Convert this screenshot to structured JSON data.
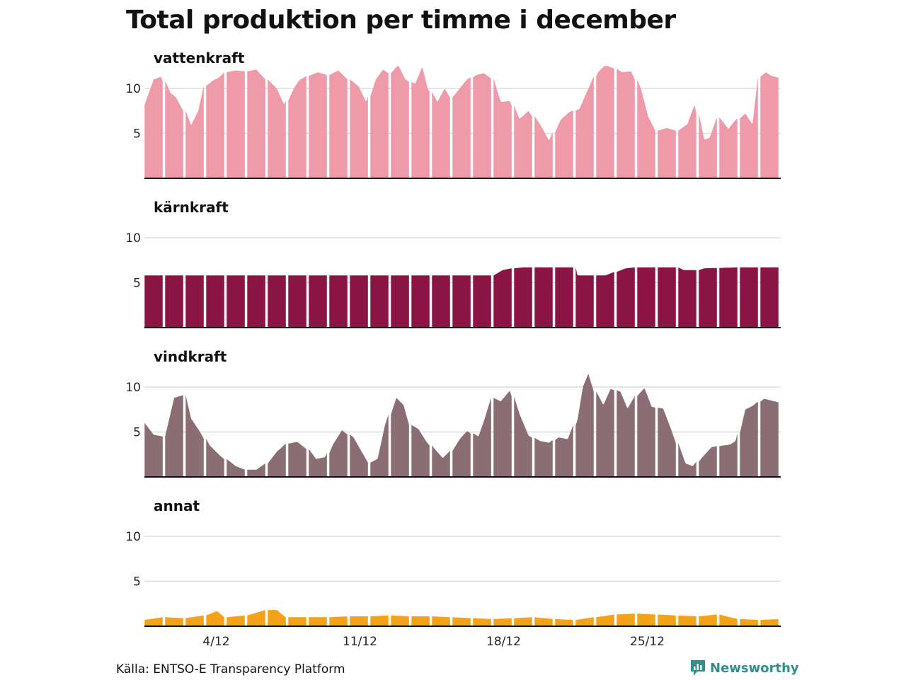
{
  "title": "Total produktion per timme i december",
  "source": "Källa: ENTSO-E Transparency Platform",
  "brand": "Newsworthy",
  "chart_data": {
    "type": "area",
    "title": "Total produktion per timme i december",
    "xlabel": "",
    "ylabel": "",
    "x": "dag i december (1–31), timvärden",
    "ylim": [
      0,
      12.5
    ],
    "yticks": [
      5,
      10
    ],
    "xticks": [
      {
        "day": 4,
        "label": "4/12"
      },
      {
        "day": 11,
        "label": "11/12"
      },
      {
        "day": 18,
        "label": "18/12"
      },
      {
        "day": 25,
        "label": "25/12"
      }
    ],
    "grid": true,
    "series": [
      {
        "name": "vattenkraft",
        "color": "#ef9aa9",
        "day_points": [
          [
            1,
            8.2
          ],
          [
            1.5,
            11
          ],
          [
            1.9,
            11.3
          ],
          [
            2.3,
            9.5
          ],
          [
            2.6,
            9
          ],
          [
            3,
            7.5
          ],
          [
            3.3,
            5.9
          ],
          [
            3.7,
            7.5
          ],
          [
            4,
            10.3
          ],
          [
            4.4,
            10.9
          ],
          [
            4.7,
            11.2
          ],
          [
            5,
            11.8
          ],
          [
            5.5,
            12
          ],
          [
            6,
            11.9
          ],
          [
            6.5,
            12.1
          ],
          [
            7,
            11
          ],
          [
            7.5,
            10
          ],
          [
            7.9,
            8.2
          ],
          [
            8.3,
            10
          ],
          [
            8.6,
            10.9
          ],
          [
            9,
            11.4
          ],
          [
            9.5,
            11.8
          ],
          [
            10,
            11.5
          ],
          [
            10.5,
            12
          ],
          [
            10.9,
            11.2
          ],
          [
            11.5,
            10.2
          ],
          [
            11.9,
            8.5
          ],
          [
            12.3,
            11
          ],
          [
            12.7,
            12.1
          ],
          [
            13,
            11.7
          ],
          [
            13.4,
            12.6
          ],
          [
            13.8,
            11
          ],
          [
            14.2,
            10.5
          ],
          [
            14.6,
            12.4
          ],
          [
            14.9,
            10
          ],
          [
            15.3,
            8.5
          ],
          [
            15.7,
            10
          ],
          [
            16,
            9
          ],
          [
            16.4,
            10
          ],
          [
            16.8,
            11
          ],
          [
            17.2,
            11.5
          ],
          [
            17.6,
            11.7
          ],
          [
            18,
            11.1
          ],
          [
            18.4,
            8.5
          ],
          [
            18.9,
            8.6
          ],
          [
            19.3,
            6.6
          ],
          [
            19.8,
            7.5
          ],
          [
            20.3,
            6
          ],
          [
            20.8,
            4.2
          ],
          [
            21.3,
            6.5
          ],
          [
            21.8,
            7.4
          ],
          [
            22.2,
            7.7
          ],
          [
            22.6,
            9.5
          ],
          [
            23.1,
            11.8
          ],
          [
            23.5,
            12.6
          ],
          [
            23.9,
            12.3
          ],
          [
            24.3,
            11.8
          ],
          [
            24.8,
            11.9
          ],
          [
            25.2,
            10
          ],
          [
            25.6,
            6.9
          ],
          [
            26,
            5.3
          ],
          [
            26.5,
            5.6
          ],
          [
            27,
            5.3
          ],
          [
            27.5,
            6
          ],
          [
            27.9,
            8.2
          ],
          [
            28.3,
            4.3
          ],
          [
            28.6,
            4.5
          ],
          [
            29,
            6.8
          ],
          [
            29.5,
            5.5
          ],
          [
            29.9,
            6.5
          ],
          [
            30.3,
            7.2
          ],
          [
            30.7,
            6
          ],
          [
            31,
            11.3
          ],
          [
            31.3,
            11.8
          ],
          [
            31.6,
            11.4
          ],
          [
            32,
            11.2
          ]
        ]
      },
      {
        "name": "kärnkraft",
        "color": "#8a1545",
        "day_points": [
          [
            1,
            5.8
          ],
          [
            18,
            5.8
          ],
          [
            18.5,
            6.4
          ],
          [
            19,
            6.6
          ],
          [
            19.5,
            6.7
          ],
          [
            20,
            6.7
          ],
          [
            22,
            6.7
          ],
          [
            22.1,
            5.8
          ],
          [
            23.5,
            5.8
          ],
          [
            24,
            6.2
          ],
          [
            24.5,
            6.6
          ],
          [
            25,
            6.7
          ],
          [
            26,
            6.7
          ],
          [
            27,
            6.7
          ],
          [
            27.3,
            6.4
          ],
          [
            28,
            6.4
          ],
          [
            28.3,
            6.6
          ],
          [
            30,
            6.7
          ],
          [
            32,
            6.7
          ]
        ]
      },
      {
        "name": "vindkraft",
        "color": "#8b6d74",
        "day_points": [
          [
            1,
            6
          ],
          [
            1.5,
            4.7
          ],
          [
            2,
            4.5
          ],
          [
            2.5,
            8.8
          ],
          [
            3,
            9.1
          ],
          [
            3.3,
            6.5
          ],
          [
            3.8,
            5
          ],
          [
            4.2,
            3.5
          ],
          [
            4.8,
            2.3
          ],
          [
            5.5,
            1.2
          ],
          [
            6,
            0.8
          ],
          [
            6.5,
            0.8
          ],
          [
            7,
            1.5
          ],
          [
            7.5,
            2.8
          ],
          [
            8,
            3.7
          ],
          [
            8.5,
            3.9
          ],
          [
            9,
            3.1
          ],
          [
            9.4,
            2
          ],
          [
            9.9,
            2.2
          ],
          [
            10.2,
            3.6
          ],
          [
            10.7,
            5.2
          ],
          [
            11.2,
            4.4
          ],
          [
            11.6,
            3
          ],
          [
            12,
            1.6
          ],
          [
            12.4,
            2
          ],
          [
            12.8,
            5.7
          ],
          [
            13.3,
            8.8
          ],
          [
            13.7,
            8
          ],
          [
            14,
            5.8
          ],
          [
            14.4,
            5.3
          ],
          [
            14.8,
            4
          ],
          [
            15.2,
            3
          ],
          [
            15.6,
            2.1
          ],
          [
            16,
            2.9
          ],
          [
            16.4,
            4.2
          ],
          [
            16.8,
            5.1
          ],
          [
            17.3,
            4.5
          ],
          [
            17.6,
            6.2
          ],
          [
            18,
            8.8
          ],
          [
            18.4,
            8.4
          ],
          [
            18.9,
            9.6
          ],
          [
            19.3,
            7
          ],
          [
            19.8,
            4.6
          ],
          [
            20.3,
            4
          ],
          [
            20.8,
            3.8
          ],
          [
            21.2,
            4.4
          ],
          [
            21.7,
            4.2
          ],
          [
            22.1,
            6.3
          ],
          [
            22.4,
            10
          ],
          [
            22.7,
            11.5
          ],
          [
            23,
            9.5
          ],
          [
            23.4,
            8
          ],
          [
            23.8,
            9.8
          ],
          [
            24.2,
            9.5
          ],
          [
            24.6,
            7.6
          ],
          [
            25,
            9
          ],
          [
            25.4,
            9.9
          ],
          [
            25.8,
            7.8
          ],
          [
            26.3,
            7.6
          ],
          [
            26.7,
            5.5
          ],
          [
            27.1,
            3.2
          ],
          [
            27.4,
            1.5
          ],
          [
            27.8,
            1.2
          ],
          [
            28.2,
            2.2
          ],
          [
            28.7,
            3.3
          ],
          [
            29.2,
            3.5
          ],
          [
            29.6,
            3.6
          ],
          [
            29.9,
            4
          ],
          [
            30.3,
            7.5
          ],
          [
            30.7,
            7.9
          ],
          [
            31.2,
            8.7
          ],
          [
            31.6,
            8.5
          ],
          [
            32,
            8.3
          ]
        ]
      },
      {
        "name": "annat",
        "color": "#f5a21b",
        "day_points": [
          [
            1,
            0.7
          ],
          [
            2,
            1
          ],
          [
            3,
            0.9
          ],
          [
            4,
            1.2
          ],
          [
            4.6,
            1.7
          ],
          [
            5,
            1
          ],
          [
            6,
            1.2
          ],
          [
            7,
            1.8
          ],
          [
            7.5,
            1.8
          ],
          [
            8,
            1
          ],
          [
            9,
            1
          ],
          [
            10,
            1
          ],
          [
            11,
            1.1
          ],
          [
            12,
            1.1
          ],
          [
            13,
            1.2
          ],
          [
            14,
            1.1
          ],
          [
            15,
            1.1
          ],
          [
            16,
            1
          ],
          [
            17,
            0.9
          ],
          [
            18,
            0.8
          ],
          [
            19,
            0.9
          ],
          [
            20,
            1
          ],
          [
            21,
            0.8
          ],
          [
            22,
            0.7
          ],
          [
            23,
            1
          ],
          [
            24,
            1.3
          ],
          [
            25,
            1.4
          ],
          [
            26,
            1.3
          ],
          [
            27,
            1.2
          ],
          [
            28,
            1.1
          ],
          [
            29,
            1.3
          ],
          [
            30,
            0.8
          ],
          [
            31,
            0.7
          ],
          [
            32,
            0.8
          ]
        ]
      }
    ]
  }
}
